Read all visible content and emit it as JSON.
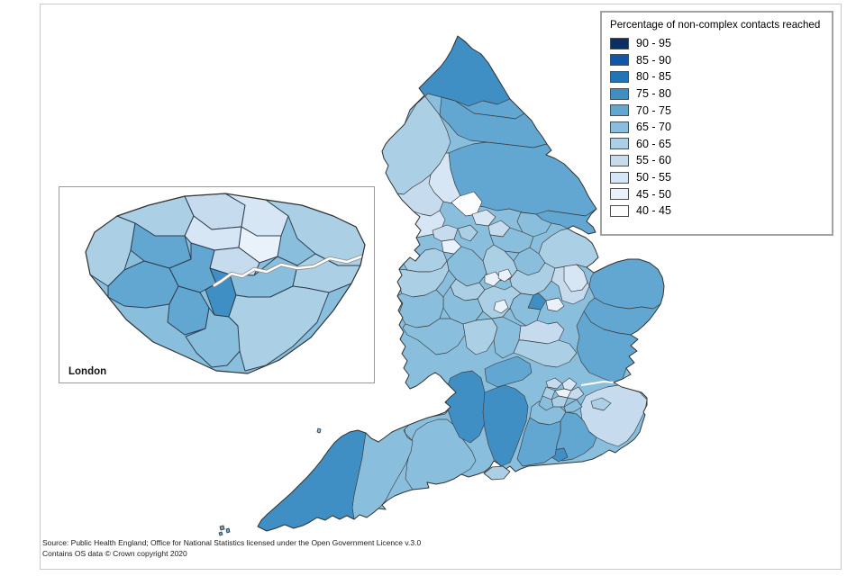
{
  "page": {
    "background": "#ffffff",
    "frame_border": "#c9c9c9"
  },
  "legend": {
    "title": "Percentage of non-complex contacts reached",
    "bands": [
      {
        "label": "90 - 95",
        "color": "#0a2f63"
      },
      {
        "label": "85 - 90",
        "color": "#1057a8"
      },
      {
        "label": "80 - 85",
        "color": "#2373b7"
      },
      {
        "label": "75 - 80",
        "color": "#3f8fc5"
      },
      {
        "label": "70 - 75",
        "color": "#61a7d2"
      },
      {
        "label": "65 - 70",
        "color": "#89bfdd"
      },
      {
        "label": "60 - 65",
        "color": "#abd0e6"
      },
      {
        "label": "55 - 60",
        "color": "#c7dbef"
      },
      {
        "label": "50 - 55",
        "color": "#d7e6f5"
      },
      {
        "label": "45 - 50",
        "color": "#e9f1fa"
      },
      {
        "label": "40 - 45",
        "color": "#fbfdff"
      }
    ]
  },
  "inset": {
    "label": "London"
  },
  "source": {
    "line1": "Source: Public Health England; Office for National Statistics licensed under the Open Government Licence v.3.0",
    "line2": "Contains OS data © Crown copyright 2020"
  },
  "map": {
    "description": "Choropleth map of England local authorities with London inset",
    "base_band": "65 - 70",
    "boundary_color": "#3c3c3c",
    "coast_color": "#333333",
    "regions": [
      {
        "name": "cumbria",
        "band": "60 - 65"
      },
      {
        "name": "northumberland",
        "band": "75 - 80"
      },
      {
        "name": "tyne-and-wear",
        "band": "70 - 75"
      },
      {
        "name": "durham",
        "band": "70 - 75"
      },
      {
        "name": "north-yorkshire",
        "band": "70 - 75"
      },
      {
        "name": "craven",
        "band": "50 - 55"
      },
      {
        "name": "lancashire-coast",
        "band": "55 - 60"
      },
      {
        "name": "lancashire-south",
        "band": "50 - 55"
      },
      {
        "name": "pennine-white",
        "band": "40 - 45"
      },
      {
        "name": "greater-manchester-a",
        "band": "55 - 60"
      },
      {
        "name": "greater-manchester-b",
        "band": "45 - 50"
      },
      {
        "name": "greater-manchester-c",
        "band": "60 - 65"
      },
      {
        "name": "west-yorkshire-a",
        "band": "50 - 55"
      },
      {
        "name": "west-yorkshire-b",
        "band": "55 - 60"
      },
      {
        "name": "york-area",
        "band": "65 - 70"
      },
      {
        "name": "south-yorkshire",
        "band": "65 - 70"
      },
      {
        "name": "east-riding",
        "band": "70 - 75"
      },
      {
        "name": "lincolnshire",
        "band": "60 - 65"
      },
      {
        "name": "nottinghamshire",
        "band": "65 - 70"
      },
      {
        "name": "derbyshire",
        "band": "60 - 65"
      },
      {
        "name": "cheshire",
        "band": "60 - 65"
      },
      {
        "name": "staffordshire",
        "band": "65 - 70"
      },
      {
        "name": "shropshire",
        "band": "60 - 65"
      },
      {
        "name": "nottingham-white",
        "band": "45 - 50"
      },
      {
        "name": "derby-white",
        "band": "45 - 50"
      },
      {
        "name": "west-midlands",
        "band": "60 - 65"
      },
      {
        "name": "leicestershire",
        "band": "60 - 65"
      },
      {
        "name": "leicester-white",
        "band": "45 - 50"
      },
      {
        "name": "norfolk",
        "band": "70 - 75"
      },
      {
        "name": "cambridgeshire",
        "band": "55 - 60"
      },
      {
        "name": "fenland-pale",
        "band": "50 - 55"
      },
      {
        "name": "rutland",
        "band": "75 - 80"
      },
      {
        "name": "fenland-white",
        "band": "45 - 50"
      },
      {
        "name": "suffolk",
        "band": "70 - 75"
      },
      {
        "name": "essex",
        "band": "70 - 75"
      },
      {
        "name": "northamptonshire",
        "band": "65 - 70"
      },
      {
        "name": "warwickshire",
        "band": "60 - 65"
      },
      {
        "name": "midlands-white",
        "band": "45 - 50"
      },
      {
        "name": "worcestershire",
        "band": "65 - 70"
      },
      {
        "name": "herefordshire",
        "band": "65 - 70"
      },
      {
        "name": "gloucestershire",
        "band": "65 - 70"
      },
      {
        "name": "oxfordshire",
        "band": "60 - 65"
      },
      {
        "name": "buckinghamshire",
        "band": "65 - 70"
      },
      {
        "name": "bedfordshire",
        "band": "55 - 60"
      },
      {
        "name": "hertfordshire",
        "band": "60 - 65"
      },
      {
        "name": "berkshire",
        "band": "70 - 75"
      },
      {
        "name": "somerset-north",
        "band": "65 - 70"
      },
      {
        "name": "somerset",
        "band": "65 - 70"
      },
      {
        "name": "dorset",
        "band": "65 - 70"
      },
      {
        "name": "devon",
        "band": "65 - 70"
      },
      {
        "name": "cornwall",
        "band": "75 - 80"
      },
      {
        "name": "wiltshire",
        "band": "75 - 80"
      },
      {
        "name": "hampshire",
        "band": "75 - 80"
      },
      {
        "name": "surrey",
        "band": "65 - 70"
      },
      {
        "name": "kent",
        "band": "55 - 60"
      },
      {
        "name": "medway",
        "band": "60 - 65"
      },
      {
        "name": "east-sussex",
        "band": "70 - 75"
      },
      {
        "name": "brighton",
        "band": "75 - 80"
      },
      {
        "name": "west-sussex",
        "band": "70 - 75"
      },
      {
        "name": "london-cell-1",
        "band": "55 - 60"
      },
      {
        "name": "london-cell-2",
        "band": "50 - 55"
      },
      {
        "name": "london-cell-3",
        "band": "45 - 50"
      },
      {
        "name": "london-cell-4",
        "band": "60 - 65"
      },
      {
        "name": "london-cell-5",
        "band": "55 - 60"
      },
      {
        "name": "london-cell-6",
        "band": "60 - 65"
      },
      {
        "name": "london-cell-7",
        "band": "65 - 70"
      },
      {
        "name": "london-cell-8",
        "band": "65 - 70"
      }
    ],
    "islands": [
      {
        "name": "isle-of-wight",
        "band": "60 - 65"
      },
      {
        "name": "scilly-a",
        "band": "70 - 75"
      },
      {
        "name": "scilly-b",
        "band": "70 - 75"
      },
      {
        "name": "scilly-c",
        "band": "70 - 75"
      },
      {
        "name": "lundy",
        "band": "65 - 70"
      }
    ],
    "london_regions": [
      {
        "name": "ln-hillingdon",
        "band": "60 - 65"
      },
      {
        "name": "ln-harrow-barnet",
        "band": "60 - 65"
      },
      {
        "name": "ln-enfield",
        "band": "55 - 60"
      },
      {
        "name": "ln-waltham-redbridge",
        "band": "50 - 55"
      },
      {
        "name": "ln-havering",
        "band": "60 - 65"
      },
      {
        "name": "ln-ealing-brent",
        "band": "70 - 75"
      },
      {
        "name": "ln-camden-islington",
        "band": "50 - 55"
      },
      {
        "name": "ln-hackney-city",
        "band": "45 - 50"
      },
      {
        "name": "ln-westminster",
        "band": "55 - 60"
      },
      {
        "name": "ln-inner-west",
        "band": "70 - 75"
      },
      {
        "name": "ln-lambeth-wandsworth",
        "band": "75 - 80"
      },
      {
        "name": "ln-greenwich-lewisham",
        "band": "65 - 70"
      },
      {
        "name": "ln-bexley",
        "band": "60 - 65"
      },
      {
        "name": "ln-hounslow-richmond",
        "band": "70 - 75"
      },
      {
        "name": "ln-kingston-merton",
        "band": "70 - 75"
      },
      {
        "name": "ln-sutton-croydon",
        "band": "65 - 70"
      },
      {
        "name": "ln-bromley",
        "band": "60 - 65"
      }
    ]
  }
}
